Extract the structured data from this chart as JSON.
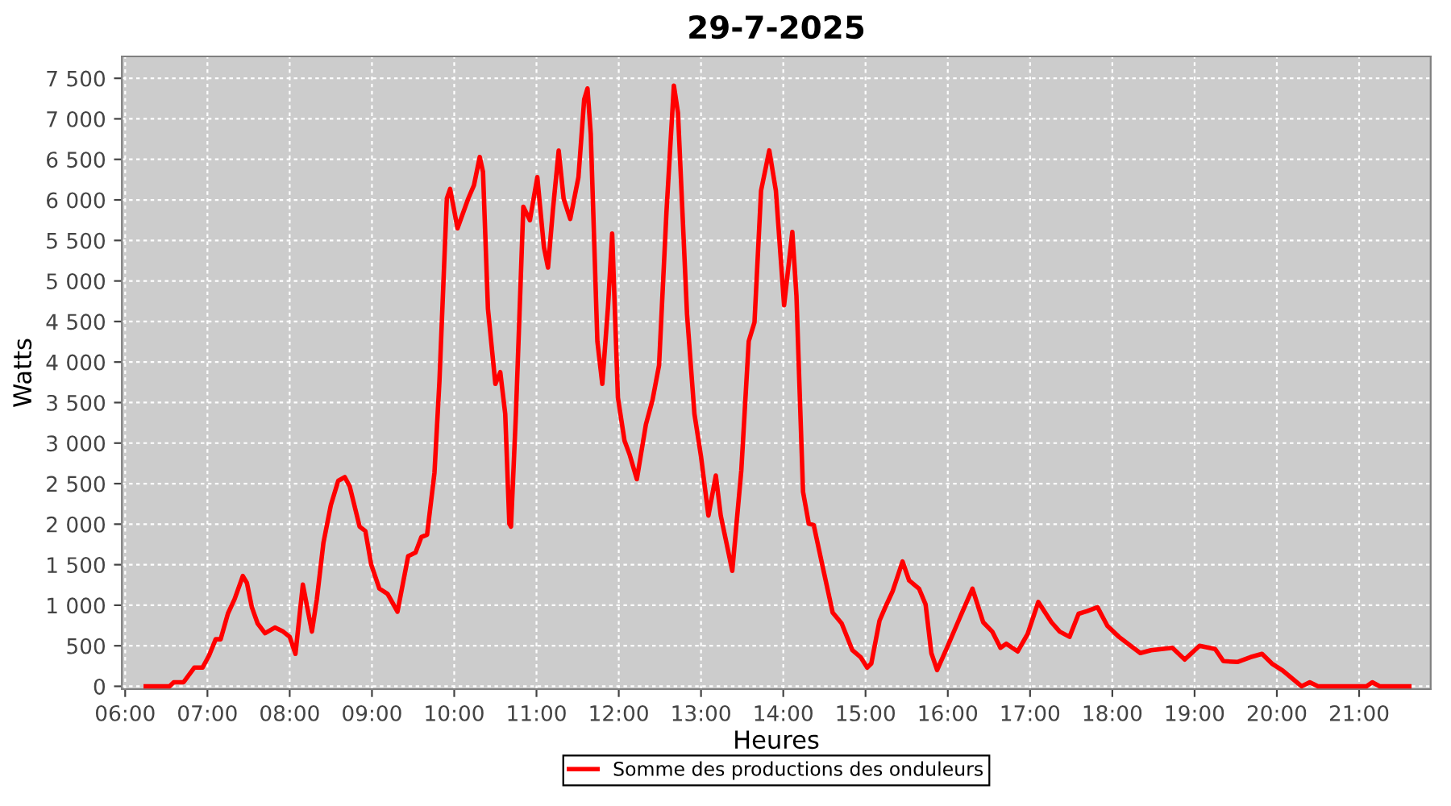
{
  "chart_data": {
    "type": "line",
    "title": "29-7-2025",
    "xlabel": "Heures",
    "ylabel": "Watts",
    "xlim": [
      5.96,
      21.87
    ],
    "ylim": [
      -35,
      7770
    ],
    "xticks": [
      {
        "value": 6,
        "label": "06:00"
      },
      {
        "value": 7,
        "label": "07:00"
      },
      {
        "value": 8,
        "label": "08:00"
      },
      {
        "value": 9,
        "label": "09:00"
      },
      {
        "value": 10,
        "label": "10:00"
      },
      {
        "value": 11,
        "label": "11:00"
      },
      {
        "value": 12,
        "label": "12:00"
      },
      {
        "value": 13,
        "label": "13:00"
      },
      {
        "value": 14,
        "label": "14:00"
      },
      {
        "value": 15,
        "label": "15:00"
      },
      {
        "value": 16,
        "label": "16:00"
      },
      {
        "value": 17,
        "label": "17:00"
      },
      {
        "value": 18,
        "label": "18:00"
      },
      {
        "value": 19,
        "label": "19:00"
      },
      {
        "value": 20,
        "label": "20:00"
      },
      {
        "value": 21,
        "label": "21:00"
      }
    ],
    "yticks": [
      0,
      500,
      {
        "value": 1000,
        "label": "1 000"
      },
      {
        "value": 1500,
        "label": "1 500"
      },
      {
        "value": 2000,
        "label": "2 000"
      },
      {
        "value": 2500,
        "label": "2 500"
      },
      {
        "value": 3000,
        "label": "3 000"
      },
      {
        "value": 3500,
        "label": "3 500"
      },
      {
        "value": 4000,
        "label": "4 000"
      },
      {
        "value": 4500,
        "label": "4 500"
      },
      {
        "value": 5000,
        "label": "5 000"
      },
      {
        "value": 5500,
        "label": "5 500"
      },
      {
        "value": 6000,
        "label": "6 000"
      },
      {
        "value": 6500,
        "label": "6 500"
      },
      {
        "value": 7000,
        "label": "7 000"
      },
      {
        "value": 7500,
        "label": "7 500"
      }
    ],
    "grid": true,
    "legend": "bottom",
    "line_style": "solid",
    "series": [
      {
        "name": "Somme des productions des onduleurs",
        "color": "#ff0000",
        "x": [
          6.25,
          6.54,
          6.59,
          6.71,
          6.84,
          6.94,
          7.02,
          7.1,
          7.16,
          7.25,
          7.33,
          7.43,
          7.48,
          7.54,
          7.61,
          7.7,
          7.82,
          7.92,
          8.0,
          8.07,
          8.16,
          8.27,
          8.33,
          8.41,
          8.5,
          8.59,
          8.67,
          8.73,
          8.85,
          8.92,
          8.99,
          9.09,
          9.19,
          9.31,
          9.44,
          9.53,
          9.6,
          9.67,
          9.76,
          9.82,
          9.91,
          9.95,
          10.04,
          10.17,
          10.24,
          10.31,
          10.35,
          10.41,
          10.5,
          10.56,
          10.62,
          10.67,
          10.69,
          10.75,
          10.84,
          10.92,
          11.01,
          11.09,
          11.14,
          11.2,
          11.27,
          11.33,
          11.41,
          11.51,
          11.58,
          11.62,
          11.66,
          11.74,
          11.8,
          11.87,
          11.92,
          11.99,
          12.07,
          12.13,
          12.22,
          12.33,
          12.41,
          12.49,
          12.58,
          12.67,
          12.72,
          12.83,
          12.92,
          13.0,
          13.09,
          13.18,
          13.24,
          13.38,
          13.49,
          13.58,
          13.65,
          13.73,
          13.83,
          13.91,
          14.01,
          14.11,
          14.16,
          14.24,
          14.31,
          14.37,
          14.48,
          14.6,
          14.71,
          14.84,
          14.94,
          15.02,
          15.07,
          15.17,
          15.24,
          15.33,
          15.45,
          15.53,
          15.65,
          15.73,
          15.8,
          15.87,
          15.99,
          16.15,
          16.3,
          16.43,
          16.54,
          16.64,
          16.71,
          16.85,
          16.97,
          17.1,
          17.26,
          17.36,
          17.48,
          17.59,
          17.69,
          17.82,
          17.94,
          18.08,
          18.21,
          18.34,
          18.47,
          18.73,
          18.88,
          19.06,
          19.25,
          19.35,
          19.52,
          19.68,
          19.82,
          19.94,
          20.07,
          20.3,
          20.4,
          20.5,
          21.09,
          21.16,
          21.25,
          21.61
        ],
        "values": [
          0,
          0,
          50,
          50,
          230,
          230,
          380,
          580,
          580,
          900,
          1075,
          1360,
          1275,
          975,
          775,
          655,
          725,
          675,
          610,
          400,
          1255,
          675,
          1075,
          1770,
          2235,
          2535,
          2580,
          2465,
          1970,
          1915,
          1505,
          1205,
          1140,
          920,
          1605,
          1650,
          1840,
          1870,
          2635,
          3760,
          6015,
          6135,
          5650,
          6015,
          6180,
          6530,
          6345,
          4655,
          3730,
          3875,
          3360,
          2005,
          1970,
          3360,
          5915,
          5750,
          6280,
          5420,
          5165,
          5880,
          6610,
          6015,
          5765,
          6280,
          7240,
          7375,
          6810,
          4255,
          3730,
          4690,
          5585,
          3560,
          3030,
          2865,
          2555,
          3230,
          3530,
          3960,
          5850,
          7410,
          7075,
          4590,
          3360,
          2835,
          2105,
          2600,
          2105,
          1425,
          2665,
          4255,
          4490,
          6115,
          6610,
          6115,
          4700,
          5605,
          4820,
          2400,
          2005,
          1990,
          1470,
          910,
          775,
          445,
          360,
          230,
          280,
          810,
          975,
          1175,
          1540,
          1305,
          1205,
          1010,
          410,
          200,
          475,
          855,
          1205,
          790,
          675,
          475,
          525,
          430,
          645,
          1040,
          790,
          675,
          610,
          895,
          925,
          975,
          745,
          610,
          510,
          410,
          445,
          475,
          330,
          500,
          460,
          310,
          300,
          360,
          400,
          280,
          195,
          0,
          50,
          0,
          0,
          50,
          0,
          0
        ]
      }
    ]
  }
}
